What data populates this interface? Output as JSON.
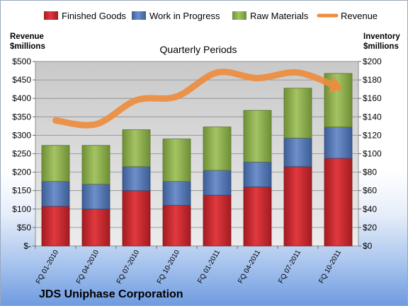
{
  "chart_data": {
    "type": "bar",
    "subtitle": "Quarterly Periods",
    "company": "JDS Uniphase Corporation",
    "left_axis": {
      "title_line1": "Revenue",
      "title_line2": "$millions",
      "ylim": [
        0,
        500
      ],
      "ticks": [
        {
          "value": 0,
          "label": "$-"
        },
        {
          "value": 50,
          "label": "$50"
        },
        {
          "value": 100,
          "label": "$100"
        },
        {
          "value": 150,
          "label": "$150"
        },
        {
          "value": 200,
          "label": "$200"
        },
        {
          "value": 250,
          "label": "$250"
        },
        {
          "value": 300,
          "label": "$300"
        },
        {
          "value": 350,
          "label": "$350"
        },
        {
          "value": 400,
          "label": "$400"
        },
        {
          "value": 450,
          "label": "$450"
        },
        {
          "value": 500,
          "label": "$500"
        }
      ]
    },
    "right_axis": {
      "title_line1": "Inventory",
      "title_line2": "$millions",
      "ylim": [
        0,
        200
      ],
      "ticks": [
        {
          "value": 0,
          "label": "$0"
        },
        {
          "value": 20,
          "label": "$20"
        },
        {
          "value": 40,
          "label": "$40"
        },
        {
          "value": 60,
          "label": "$60"
        },
        {
          "value": 80,
          "label": "$80"
        },
        {
          "value": 100,
          "label": "$100"
        },
        {
          "value": 120,
          "label": "$120"
        },
        {
          "value": 140,
          "label": "$140"
        },
        {
          "value": 160,
          "label": "$160"
        },
        {
          "value": 180,
          "label": "$180"
        },
        {
          "value": 200,
          "label": "$200"
        }
      ]
    },
    "categories": [
      "FQ 01-2010",
      "FQ 04-2010",
      "FQ 07-2010",
      "FQ 10-2010",
      "FQ 01-2011",
      "FQ 04-2011",
      "FQ 07-2011",
      "FQ 10-2011"
    ],
    "series": [
      {
        "name": "Finished Goods",
        "axis": "right",
        "kind": "stacked-bar",
        "color": "#cc2229",
        "values": [
          43,
          40,
          60,
          44,
          55,
          64,
          86,
          95
        ]
      },
      {
        "name": "Work in Progress",
        "axis": "right",
        "kind": "stacked-bar",
        "color": "#4f72ad",
        "values": [
          27,
          27,
          26,
          26,
          27,
          27,
          31,
          34
        ]
      },
      {
        "name": "Raw Materials",
        "axis": "right",
        "kind": "stacked-bar",
        "color": "#8cad4b",
        "values": [
          39,
          42,
          40,
          46,
          47,
          56,
          54,
          58
        ]
      },
      {
        "name": "Revenue",
        "axis": "left",
        "kind": "line-arrow",
        "color": "#ed8c3f",
        "values": [
          340,
          330,
          395,
          405,
          470,
          455,
          470,
          430
        ]
      }
    ],
    "grid": true,
    "legend": "top"
  }
}
